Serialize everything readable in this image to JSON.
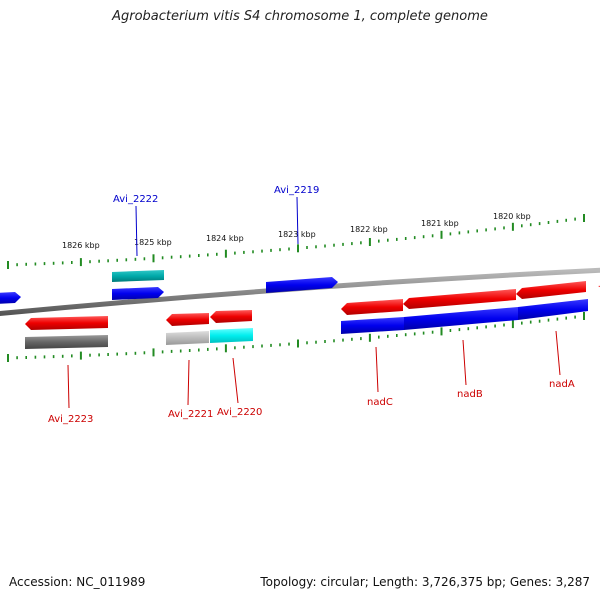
{
  "title": "Agrobacterium vitis S4 chromosome 1, complete genome",
  "footer": {
    "accession": "Accession: NC_011989",
    "topology": "Topology: circular; Length: 3,726,375 bp; Genes: 3,287"
  },
  "scale_labels": [
    "1826 kbp",
    "1825 kbp",
    "1824 kbp",
    "1823 kbp",
    "1822 kbp",
    "1821 kbp",
    "1820 kbp"
  ],
  "colors": {
    "cds_forward": "#0000ee",
    "cds_reverse": "#ee0000",
    "rna": "#00cccc",
    "pseudo": "#777777",
    "ticks": "#228b22",
    "backbone": "#888888",
    "label_blue": "#0000cc",
    "label_red": "#cc0000"
  },
  "gene_labels": [
    {
      "name": "Avi_2222",
      "strand": "forward"
    },
    {
      "name": "Avi_2219",
      "strand": "forward"
    },
    {
      "name": "Avi_2223",
      "strand": "reverse"
    },
    {
      "name": "Avi_2221",
      "strand": "reverse"
    },
    {
      "name": "Avi_2220",
      "strand": "reverse"
    },
    {
      "name": "nadC",
      "strand": "reverse"
    },
    {
      "name": "nadB",
      "strand": "reverse"
    },
    {
      "name": "nadA",
      "strand": "reverse"
    }
  ]
}
